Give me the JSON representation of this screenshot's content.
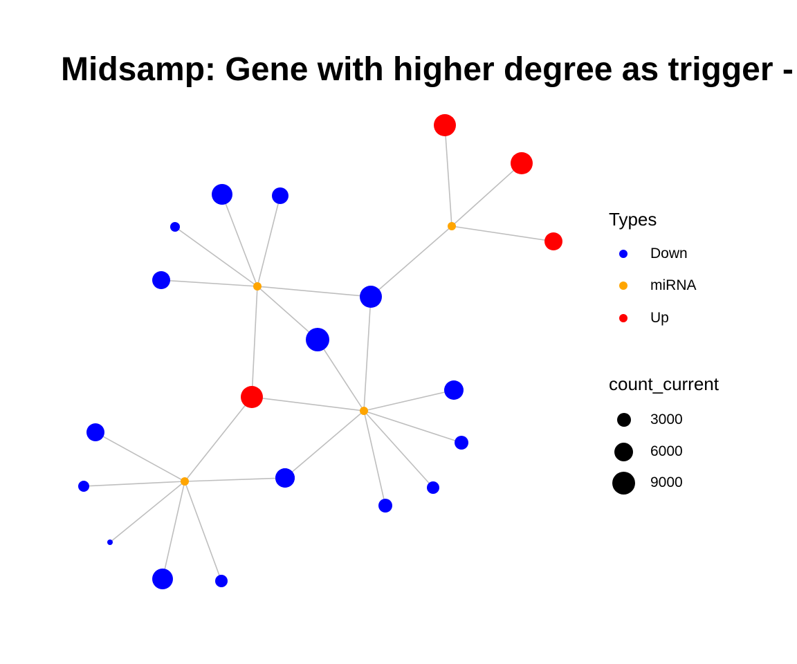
{
  "title": "Midsamp: Gene with higher degree as trigger -",
  "colors": {
    "edge": "#bebebe",
    "Down": "#0000ff",
    "miRNA": "#ffa500",
    "Up": "#ff0000"
  },
  "legend": {
    "types_title": "Types",
    "types": [
      {
        "label": "Down",
        "color": "#0000ff"
      },
      {
        "label": "miRNA",
        "color": "#ffa500"
      },
      {
        "label": "Up",
        "color": "#ff0000"
      }
    ],
    "size_title": "count_current",
    "sizes": [
      {
        "label": "3000"
      },
      {
        "label": "6000"
      },
      {
        "label": "9000"
      }
    ]
  },
  "network": {
    "nodes": [
      {
        "id": "m1",
        "type": "miRNA"
      },
      {
        "id": "m2",
        "type": "miRNA"
      },
      {
        "id": "m3",
        "type": "miRNA"
      },
      {
        "id": "m4",
        "type": "miRNA"
      },
      {
        "id": "u1",
        "type": "Up"
      },
      {
        "id": "u2",
        "type": "Up"
      },
      {
        "id": "u3",
        "type": "Up"
      },
      {
        "id": "u4",
        "type": "Up"
      },
      {
        "id": "d1",
        "type": "Down"
      },
      {
        "id": "d2",
        "type": "Down"
      },
      {
        "id": "d3",
        "type": "Down"
      },
      {
        "id": "d4",
        "type": "Down"
      },
      {
        "id": "d5",
        "type": "Down"
      },
      {
        "id": "d6",
        "type": "Down"
      },
      {
        "id": "d7",
        "type": "Down"
      },
      {
        "id": "d8",
        "type": "Down"
      },
      {
        "id": "d9",
        "type": "Down"
      },
      {
        "id": "d10",
        "type": "Down"
      },
      {
        "id": "d11",
        "type": "Down"
      },
      {
        "id": "d12",
        "type": "Down"
      },
      {
        "id": "d13",
        "type": "Down"
      },
      {
        "id": "d14",
        "type": "Down"
      },
      {
        "id": "d15",
        "type": "Down"
      },
      {
        "id": "d16",
        "type": "Down"
      },
      {
        "id": "d17",
        "type": "Down"
      }
    ],
    "edges": [
      [
        "m1",
        "u1"
      ],
      [
        "m1",
        "u2"
      ],
      [
        "m1",
        "u3"
      ],
      [
        "m1",
        "d8"
      ],
      [
        "m2",
        "d1"
      ],
      [
        "m2",
        "d2"
      ],
      [
        "m2",
        "d3"
      ],
      [
        "m2",
        "d4"
      ],
      [
        "m2",
        "d8"
      ],
      [
        "m2",
        "d5"
      ],
      [
        "m2",
        "u4"
      ],
      [
        "m3",
        "d5"
      ],
      [
        "m3",
        "d8"
      ],
      [
        "m3",
        "u4"
      ],
      [
        "m3",
        "d6"
      ],
      [
        "m3",
        "d7"
      ],
      [
        "m3",
        "d10"
      ],
      [
        "m3",
        "d11"
      ],
      [
        "m3",
        "d12"
      ],
      [
        "m4",
        "u4"
      ],
      [
        "m4",
        "d9"
      ],
      [
        "m4",
        "d13"
      ],
      [
        "m4",
        "d14"
      ],
      [
        "m4",
        "d15"
      ],
      [
        "m4",
        "d16"
      ],
      [
        "m4",
        "d17"
      ]
    ]
  }
}
